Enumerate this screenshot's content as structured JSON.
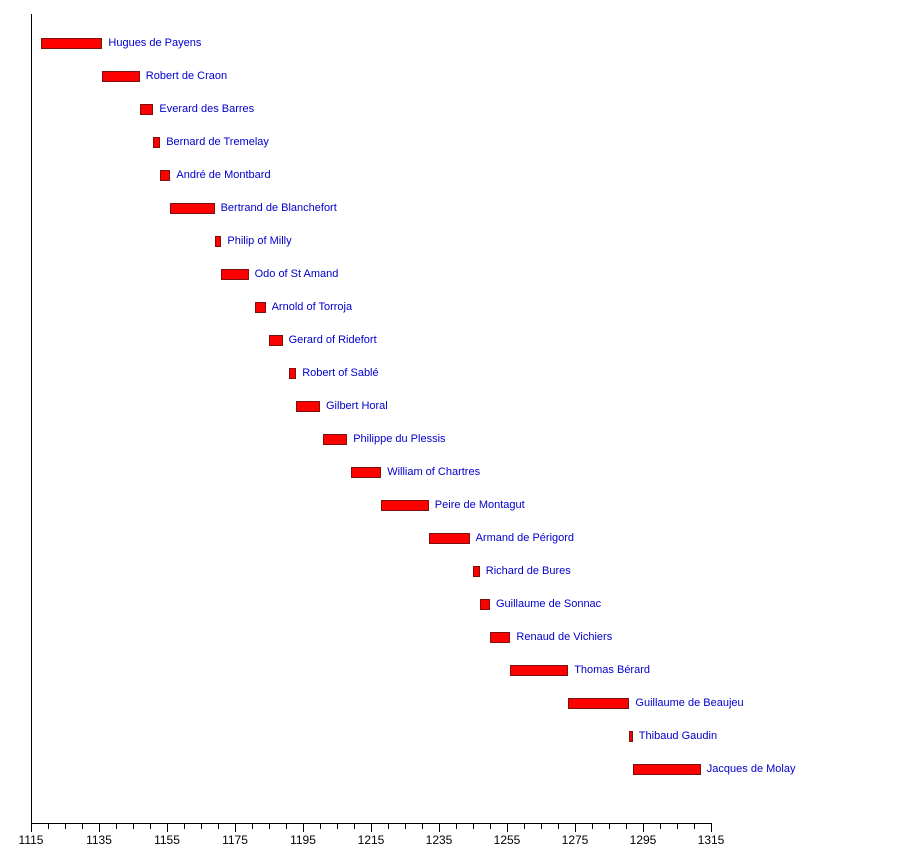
{
  "chart_data": {
    "type": "bar",
    "variant": "horizontal-timeline",
    "title": "",
    "xlabel": "",
    "ylabel": "",
    "grid": false,
    "legend": "none",
    "axis_color": "#000000",
    "bar_fill_color": "#ff0000",
    "bar_border_color": "#7a1212",
    "label_color": "#0000cc",
    "x_axis": {
      "min": 1115,
      "max": 1315,
      "major_tick_step": 20,
      "minor_tick_step": 5,
      "tick_labels": [
        "1115",
        "1135",
        "1155",
        "1175",
        "1195",
        "1215",
        "1235",
        "1255",
        "1275",
        "1295",
        "1315"
      ]
    },
    "series": [
      {
        "name": "Hugues de Payens",
        "start": 1118,
        "end": 1136
      },
      {
        "name": "Robert de Craon",
        "start": 1136,
        "end": 1147
      },
      {
        "name": "Everard des Barres",
        "start": 1147,
        "end": 1151
      },
      {
        "name": "Bernard de Tremelay",
        "start": 1151,
        "end": 1153
      },
      {
        "name": "André de Montbard",
        "start": 1153,
        "end": 1156
      },
      {
        "name": "Bertrand de Blanchefort",
        "start": 1156,
        "end": 1169
      },
      {
        "name": "Philip of Milly",
        "start": 1169,
        "end": 1171
      },
      {
        "name": "Odo of St Amand",
        "start": 1171,
        "end": 1179
      },
      {
        "name": "Arnold of Torroja",
        "start": 1181,
        "end": 1184
      },
      {
        "name": "Gerard of Ridefort",
        "start": 1185,
        "end": 1189
      },
      {
        "name": "Robert of Sablé",
        "start": 1191,
        "end": 1193
      },
      {
        "name": "Gilbert Horal",
        "start": 1193,
        "end": 1200
      },
      {
        "name": "Philippe du Plessis",
        "start": 1201,
        "end": 1208
      },
      {
        "name": "William of Chartres",
        "start": 1209,
        "end": 1218
      },
      {
        "name": "Peire de Montagut",
        "start": 1218,
        "end": 1232
      },
      {
        "name": "Armand de Périgord",
        "start": 1232,
        "end": 1244
      },
      {
        "name": "Richard de Bures",
        "start": 1245,
        "end": 1247
      },
      {
        "name": "Guillaume de Sonnac",
        "start": 1247,
        "end": 1250
      },
      {
        "name": "Renaud de Vichiers",
        "start": 1250,
        "end": 1256
      },
      {
        "name": "Thomas Bérard",
        "start": 1256,
        "end": 1273
      },
      {
        "name": "Guillaume de Beaujeu",
        "start": 1273,
        "end": 1291
      },
      {
        "name": "Thibaud Gaudin",
        "start": 1291,
        "end": 1292
      },
      {
        "name": "Jacques de Molay",
        "start": 1292,
        "end": 1312
      }
    ]
  }
}
